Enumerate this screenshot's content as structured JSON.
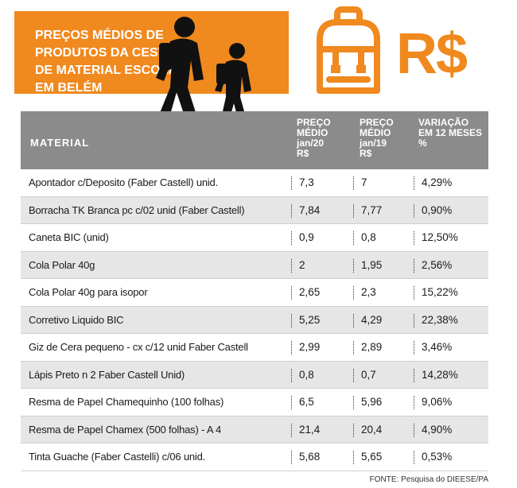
{
  "title": "PREÇOS MÉDIOS DE PRODUTOS DA CESTA DE MATERIAL ESCOLAR EM BELÉM",
  "currency_symbol": "R$",
  "colors": {
    "accent": "#f0891e",
    "header_bg": "#8b8b8b",
    "row_alt": "#e6e6e6"
  },
  "icons": [
    "pedestrians-crossing-icon",
    "backpack-icon"
  ],
  "chart_data": {
    "type": "table",
    "title": "PREÇOS MÉDIOS DE PRODUTOS DA CESTA DE MATERIAL ESCOLAR EM BELÉM",
    "columns": [
      {
        "label": "MATERIAL"
      },
      {
        "label_lines": [
          "PREÇO",
          "MÉDIO",
          "jan/20",
          "R$"
        ]
      },
      {
        "label_lines": [
          "PREÇO",
          "MÉDIO",
          "jan/19",
          "R$"
        ]
      },
      {
        "label_lines": [
          "VARIAÇÃO",
          "EM 12 MESES",
          "%"
        ]
      }
    ],
    "rows": [
      {
        "material": "Apontador c/Deposito (Faber Castell) unid.",
        "jan20": "7,3",
        "jan19": "7",
        "variacao": "4,29%"
      },
      {
        "material": "Borracha TK Branca pc c/02 unid (Faber Castell)",
        "jan20": "7,84",
        "jan19": "7,77",
        "variacao": "0,90%"
      },
      {
        "material": "Caneta BIC (unid)",
        "jan20": "0,9",
        "jan19": "0,8",
        "variacao": "12,50%"
      },
      {
        "material": "Cola Polar 40g",
        "jan20": "2",
        "jan19": "1,95",
        "variacao": "2,56%"
      },
      {
        "material": "Cola Polar 40g para isopor",
        "jan20": "2,65",
        "jan19": "2,3",
        "variacao": "15,22%"
      },
      {
        "material": "Corretivo Liquido BIC",
        "jan20": "5,25",
        "jan19": "4,29",
        "variacao": "22,38%"
      },
      {
        "material": "Giz de Cera pequeno - cx c/12 unid Faber Castell",
        "jan20": "2,99",
        "jan19": "2,89",
        "variacao": "3,46%"
      },
      {
        "material": "Lápis Preto n 2 Faber Castell Unid)",
        "jan20": "0,8",
        "jan19": "0,7",
        "variacao": "14,28%"
      },
      {
        "material": "Resma de Papel Chamequinho (100 folhas)",
        "jan20": "6,5",
        "jan19": "5,96",
        "variacao": "9,06%"
      },
      {
        "material": "Resma de Papel Chamex (500 folhas) - A 4",
        "jan20": "21,4",
        "jan19": "20,4",
        "variacao": "4,90%"
      },
      {
        "material": "Tinta Guache (Faber Castelli) c/06 unid.",
        "jan20": "5,68",
        "jan19": "5,65",
        "variacao": "0,53%"
      }
    ],
    "source": "FONTE: Pesquisa do DIEESE/PA"
  }
}
